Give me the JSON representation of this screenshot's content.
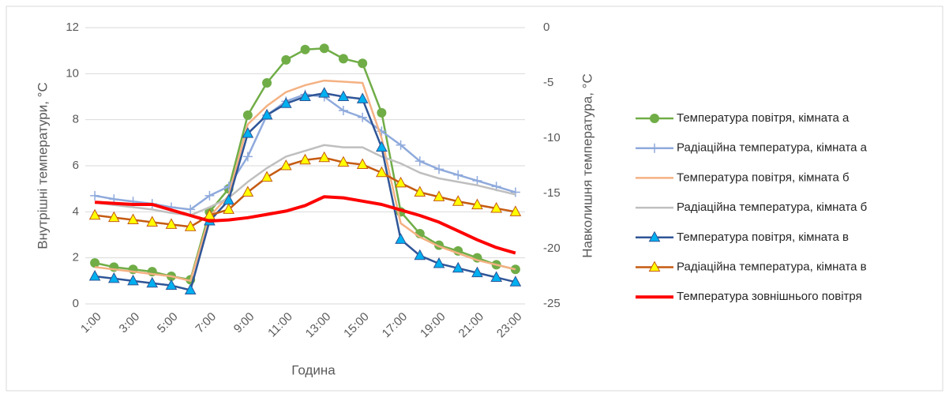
{
  "chart_data": {
    "type": "line",
    "x_title": "Година",
    "y_title": "Внутрішні температури, °C",
    "y2_title": "Навколишня температура, °C",
    "categories": [
      "1:00",
      null,
      "3:00",
      null,
      "5:00",
      null,
      "7:00",
      null,
      "9:00",
      null,
      "11:00",
      null,
      "13:00",
      null,
      "15:00",
      null,
      "17:00",
      null,
      "19:00",
      null,
      "21:00",
      null,
      "23:00"
    ],
    "ylim": [
      0,
      12
    ],
    "yticks": [
      0,
      2,
      4,
      6,
      8,
      10,
      12
    ],
    "y2lim": [
      -25,
      0
    ],
    "y2ticks": [
      -25,
      -20,
      -15,
      -10,
      -5,
      0
    ],
    "grid": true,
    "legend": "right",
    "series": [
      {
        "name": "Температура повітря, кімната а",
        "color": "#70ad47",
        "marker": "circle",
        "marker_fill": "#70ad47",
        "values": [
          1.78,
          1.6,
          1.5,
          1.4,
          1.2,
          1.05,
          4.0,
          5.0,
          8.2,
          9.6,
          10.6,
          11.05,
          11.1,
          10.65,
          10.45,
          8.3,
          4.0,
          3.05,
          2.55,
          2.3,
          2.0,
          1.7,
          1.5
        ]
      },
      {
        "name": "Радіаційна температура, кімната а",
        "color": "#8faadc",
        "marker": "plus",
        "marker_fill": "#8faadc",
        "values": [
          4.7,
          4.55,
          4.45,
          4.35,
          4.2,
          4.1,
          4.7,
          5.1,
          6.4,
          8.2,
          8.8,
          9.1,
          9.0,
          8.4,
          8.1,
          7.5,
          6.9,
          6.2,
          5.85,
          5.6,
          5.35,
          5.1,
          4.85
        ]
      },
      {
        "name": "Температура повітря, кімната б",
        "color": "#f4b183",
        "marker": "none",
        "marker_fill": "#f4b183",
        "values": [
          1.6,
          1.5,
          1.4,
          1.3,
          1.2,
          1.0,
          3.8,
          4.7,
          7.8,
          8.6,
          9.2,
          9.5,
          9.7,
          9.65,
          9.6,
          7.2,
          3.5,
          2.9,
          2.5,
          2.2,
          1.9,
          1.7,
          1.5
        ]
      },
      {
        "name": "Радіаційна температура, кімната б",
        "color": "#bfbfbf",
        "marker": "none",
        "marker_fill": "#bfbfbf",
        "values": [
          4.4,
          4.3,
          4.2,
          4.1,
          3.95,
          3.85,
          4.2,
          4.6,
          5.3,
          5.9,
          6.4,
          6.65,
          6.9,
          6.8,
          6.8,
          6.4,
          6.1,
          5.7,
          5.45,
          5.3,
          5.15,
          4.95,
          4.75
        ]
      },
      {
        "name": "Температура повітря, кімната в",
        "color": "#2f5597",
        "marker": "triangle",
        "marker_fill": "#00b0f0",
        "values": [
          1.2,
          1.1,
          1.0,
          0.9,
          0.8,
          0.6,
          3.6,
          4.5,
          7.4,
          8.2,
          8.7,
          9.0,
          9.15,
          9.0,
          8.9,
          6.8,
          2.8,
          2.1,
          1.75,
          1.55,
          1.35,
          1.15,
          0.95
        ]
      },
      {
        "name": "Радіаційна температура, кімната в",
        "color": "#c55a11",
        "marker": "triangle",
        "marker_fill": "#ffff00",
        "values": [
          3.85,
          3.75,
          3.65,
          3.55,
          3.45,
          3.35,
          3.85,
          4.1,
          4.85,
          5.5,
          6.0,
          6.25,
          6.35,
          6.15,
          6.05,
          5.7,
          5.25,
          4.85,
          4.65,
          4.45,
          4.3,
          4.15,
          4.0
        ]
      },
      {
        "name": "Температура зовнішнього повітря",
        "color": "#ff0000",
        "marker": "none",
        "marker_fill": "#ff0000",
        "axis": "y2",
        "width": 4,
        "values": [
          -15.8,
          -15.9,
          -16.0,
          -16.0,
          -16.5,
          -17.0,
          -17.5,
          -17.4,
          -17.2,
          -16.9,
          -16.6,
          -16.1,
          -15.3,
          -15.4,
          -15.7,
          -16.0,
          -16.5,
          -17.0,
          -17.6,
          -18.4,
          -19.2,
          -19.9,
          -20.4
        ]
      }
    ]
  }
}
